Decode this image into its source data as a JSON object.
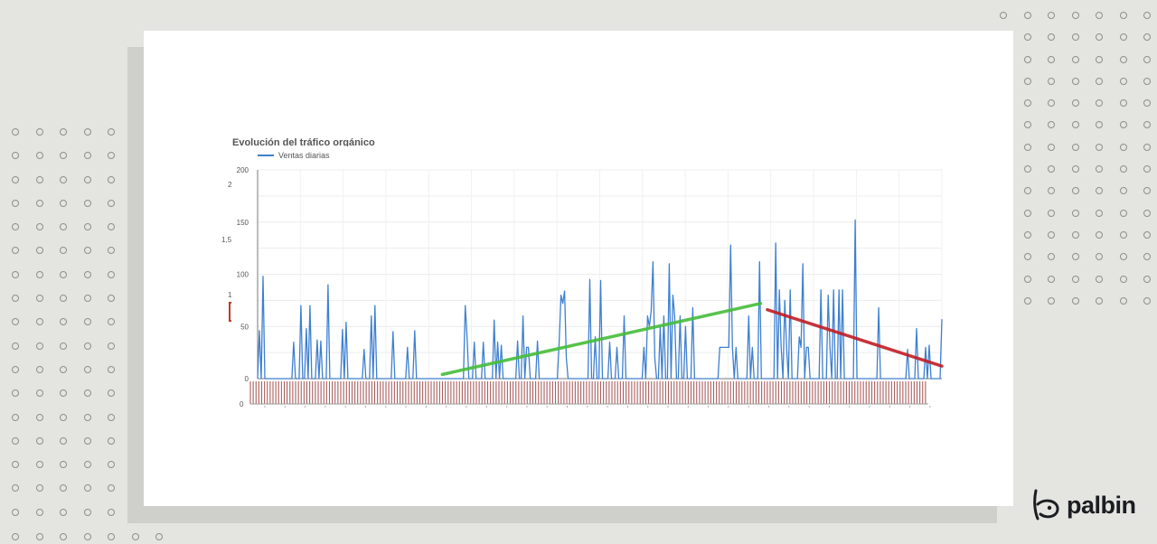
{
  "brand": {
    "name": "palbin"
  },
  "colors": {
    "background": "#e4e5e0",
    "card": "#ffffff",
    "series": "#3d7fd1",
    "trend_up": "#45bd3a",
    "trend_down": "#c21d24",
    "bars": "#a85e5e"
  },
  "overlay_fragments": {
    "y_labels": [
      "2",
      "1,5",
      "1"
    ],
    "zero": "0"
  },
  "chart_data": {
    "type": "line",
    "title": "Evolución del tráfico orgánico",
    "series": [
      {
        "name": "Ventas diarias",
        "values": [
          0,
          46,
          0,
          98,
          0,
          0,
          0,
          0,
          0,
          0,
          0,
          0,
          0,
          0,
          0,
          0,
          0,
          0,
          0,
          0,
          35,
          0,
          0,
          0,
          70,
          0,
          0,
          48,
          0,
          70,
          0,
          0,
          0,
          37,
          0,
          36,
          0,
          0,
          0,
          90,
          0,
          0,
          0,
          0,
          0,
          0,
          0,
          47,
          0,
          54,
          0,
          0,
          0,
          0,
          0,
          0,
          0,
          0,
          0,
          28,
          0,
          0,
          0,
          60,
          0,
          70,
          0,
          0,
          0,
          0,
          0,
          0,
          0,
          0,
          0,
          45,
          0,
          0,
          0,
          0,
          0,
          0,
          0,
          30,
          0,
          0,
          0,
          46,
          0,
          0,
          0,
          0,
          0,
          0,
          0,
          0,
          0,
          0,
          0,
          0,
          0,
          0,
          0,
          0,
          0,
          0,
          0,
          0,
          0,
          0,
          0,
          0,
          0,
          0,
          0,
          70,
          40,
          0,
          0,
          0,
          35,
          0,
          0,
          0,
          0,
          35,
          0,
          0,
          0,
          0,
          0,
          56,
          0,
          35,
          0,
          32,
          0,
          0,
          0,
          0,
          0,
          0,
          0,
          0,
          36,
          0,
          0,
          60,
          0,
          30,
          30,
          0,
          0,
          0,
          0,
          36,
          0,
          0,
          0,
          0,
          0,
          0,
          0,
          0,
          0,
          0,
          0,
          35,
          80,
          72,
          84,
          20,
          0,
          0,
          0,
          0,
          0,
          0,
          0,
          0,
          0,
          0,
          0,
          0,
          95,
          0,
          0,
          40,
          0,
          0,
          94,
          0,
          0,
          0,
          0,
          35,
          0,
          0,
          0,
          30,
          0,
          0,
          0,
          60,
          0,
          0,
          0,
          0,
          0,
          0,
          0,
          0,
          0,
          0,
          30,
          0,
          60,
          50,
          65,
          112,
          20,
          0,
          0,
          50,
          0,
          60,
          0,
          0,
          110,
          0,
          80,
          60,
          0,
          0,
          60,
          0,
          0,
          50,
          0,
          0,
          0,
          68,
          0,
          0,
          0,
          0,
          0,
          0,
          0,
          0,
          0,
          0,
          0,
          0,
          0,
          0,
          30,
          30,
          30,
          30,
          30,
          30,
          128,
          30,
          0,
          30,
          0,
          0,
          0,
          0,
          0,
          0,
          60,
          0,
          30,
          0,
          0,
          0,
          112,
          0,
          0,
          0,
          0,
          0,
          0,
          0,
          0,
          130,
          0,
          85,
          30,
          0,
          75,
          30,
          0,
          85,
          0,
          0,
          0,
          0,
          40,
          30,
          110,
          0,
          30,
          30,
          0,
          0,
          0,
          0,
          0,
          0,
          85,
          0,
          0,
          0,
          80,
          30,
          0,
          85,
          0,
          0,
          85,
          0,
          85,
          0,
          0,
          0,
          0,
          0,
          0,
          152,
          0,
          0,
          0,
          0,
          0,
          0,
          0,
          0,
          0,
          0,
          0,
          0,
          68,
          0,
          0,
          0,
          0,
          0,
          0,
          0,
          0,
          0,
          0,
          0,
          0,
          0,
          0,
          0,
          28,
          0,
          0,
          0,
          0,
          48,
          0,
          0,
          0,
          0,
          30,
          0,
          32,
          0,
          0,
          0,
          0,
          0,
          0,
          57
        ]
      }
    ],
    "trend_lines": [
      {
        "color": "#45bd3a",
        "from": {
          "x": 0.27,
          "y": 4
        },
        "to": {
          "x": 0.735,
          "y": 72
        }
      },
      {
        "color": "#c21d24",
        "from": {
          "x": 0.745,
          "y": 66
        },
        "to": {
          "x": 1.0,
          "y": 12
        }
      }
    ],
    "ylim": [
      0,
      200
    ],
    "yticks": [
      0,
      50,
      100,
      150,
      200
    ],
    "grid": true,
    "legend": "top-left"
  }
}
